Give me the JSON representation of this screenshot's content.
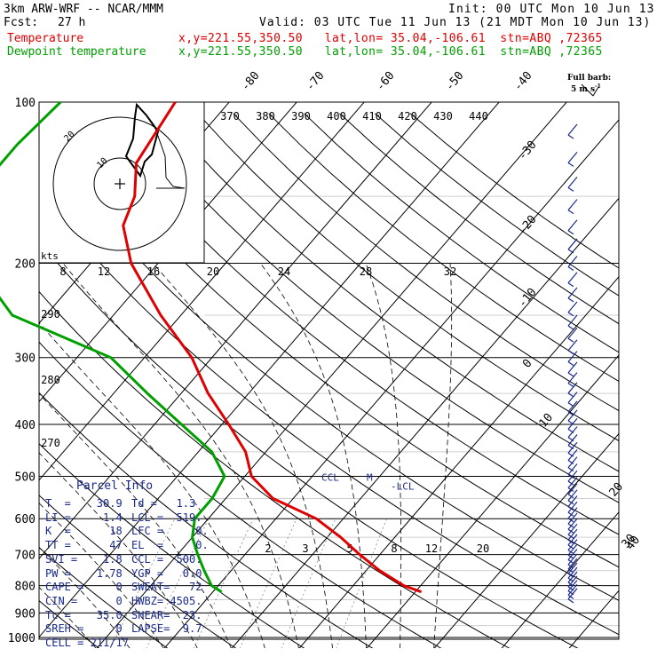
{
  "header": {
    "model": "3km ARW-WRF -- NCAR/MMM",
    "init": "Init: 00 UTC Mon 10 Jun 13",
    "fcst_label": "Fcst:",
    "fcst_value": "27 h",
    "valid": "Valid: 03 UTC Tue 11 Jun 13 (21 MDT Mon 10 Jun 13)",
    "temp_label": "Temperature",
    "temp_loc": "x,y=221.55,350.50   lat,lon= 35.04,-106.61  stn=ABQ ,72365",
    "dew_label": "Dewpoint temperature",
    "dew_loc": "x,y=221.55,350.50   lat,lon= 35.04,-106.61  stn=ABQ ,72365"
  },
  "barb_legend": {
    "line1": "Full barb:",
    "line2": "5 m s",
    "exp": "-1"
  },
  "panel": {
    "title": "Parcel Info",
    "rows": [
      [
        "T  =    30.9",
        "Td =   1.3"
      ],
      [
        "LI =     1.4",
        "LCL =  519."
      ],
      [
        "K  =      18",
        "LFC =     0."
      ],
      [
        "TT =      47",
        "EL  =     0."
      ],
      [
        "SVI =    1.8",
        "CCL =  500."
      ],
      [
        "PW =    1.78",
        "YGP =   0.0"
      ],
      [
        "CAPE =     0",
        "SWEAT=   72"
      ],
      [
        "CIN =      0",
        "HWBZ= 4505."
      ],
      [
        "Tc =    35.0",
        "SHEAR=  23."
      ],
      [
        "SREH =     0",
        "LAPSE=  9.7"
      ],
      [
        "CELL = 211/17",
        ""
      ]
    ]
  },
  "hodograph": {
    "units_label": "kts",
    "ring_labels": [
      "10",
      "20"
    ]
  },
  "markers": {
    "ccl": "CCL",
    "m": "M",
    "lcl": "-LCL"
  },
  "colors": {
    "temperature": "#e00000",
    "dewpoint": "#00a000",
    "isotherm_label": "#000000",
    "panel_text": "#1a2a8c",
    "wind_barb": "#1a2a8c"
  },
  "chart_data": {
    "type": "skew-t",
    "pressure_levels": [
      100,
      200,
      300,
      400,
      500,
      600,
      700,
      800,
      900,
      1000
    ],
    "y_scale": "log-pressure",
    "isotherm_labels": [
      "-80",
      "-70",
      "-60",
      "-50",
      "-40",
      "-30",
      "-20",
      "-10",
      "0",
      "10",
      "20",
      "30",
      "40"
    ],
    "isotherm_values": [
      -80,
      -70,
      -60,
      -50,
      -40,
      -30,
      -20,
      -10,
      0,
      10,
      20,
      30,
      40
    ],
    "theta_labels": [
      "370",
      "380",
      "390",
      "400",
      "410",
      "420",
      "430",
      "440"
    ],
    "lower_theta_labels": [
      "290",
      "280",
      "270"
    ],
    "mixing_ratio_labels": [
      "8",
      "12",
      "16",
      "20",
      "24",
      "28",
      "32"
    ],
    "mixing_ratio_lower_labels": [
      "2",
      "3",
      "5",
      "8",
      "12",
      "20"
    ],
    "series": [
      {
        "name": "Temperature",
        "points": [
          {
            "p": 100,
            "t": -68.0
          },
          {
            "p": 130,
            "t": -66.0
          },
          {
            "p": 150,
            "t": -62.0
          },
          {
            "p": 170,
            "t": -60.0
          },
          {
            "p": 200,
            "t": -54.0
          },
          {
            "p": 250,
            "t": -43.0
          },
          {
            "p": 300,
            "t": -33.0
          },
          {
            "p": 350,
            "t": -26.0
          },
          {
            "p": 400,
            "t": -19.0
          },
          {
            "p": 450,
            "t": -13.0
          },
          {
            "p": 500,
            "t": -9.0
          },
          {
            "p": 550,
            "t": -3.0
          },
          {
            "p": 600,
            "t": 6.0
          },
          {
            "p": 650,
            "t": 12.0
          },
          {
            "p": 700,
            "t": 17.0
          },
          {
            "p": 750,
            "t": 22.0
          },
          {
            "p": 800,
            "t": 27.5
          },
          {
            "p": 822,
            "t": 30.9
          }
        ]
      },
      {
        "name": "Dewpoint temperature",
        "points": [
          {
            "p": 100,
            "t": -85.0
          },
          {
            "p": 120,
            "t": -86.0
          },
          {
            "p": 150,
            "t": -86.0
          },
          {
            "p": 180,
            "t": -77.0
          },
          {
            "p": 220,
            "t": -72.0
          },
          {
            "p": 250,
            "t": -65.0
          },
          {
            "p": 300,
            "t": -45.0
          },
          {
            "p": 350,
            "t": -35.0
          },
          {
            "p": 400,
            "t": -26.0
          },
          {
            "p": 450,
            "t": -18.0
          },
          {
            "p": 500,
            "t": -13.0
          },
          {
            "p": 550,
            "t": -12.0
          },
          {
            "p": 600,
            "t": -12.0
          },
          {
            "p": 650,
            "t": -10.0
          },
          {
            "p": 700,
            "t": -7.0
          },
          {
            "p": 750,
            "t": -4.0
          },
          {
            "p": 800,
            "t": -1.0
          },
          {
            "p": 822,
            "t": 1.3
          }
        ]
      }
    ]
  }
}
